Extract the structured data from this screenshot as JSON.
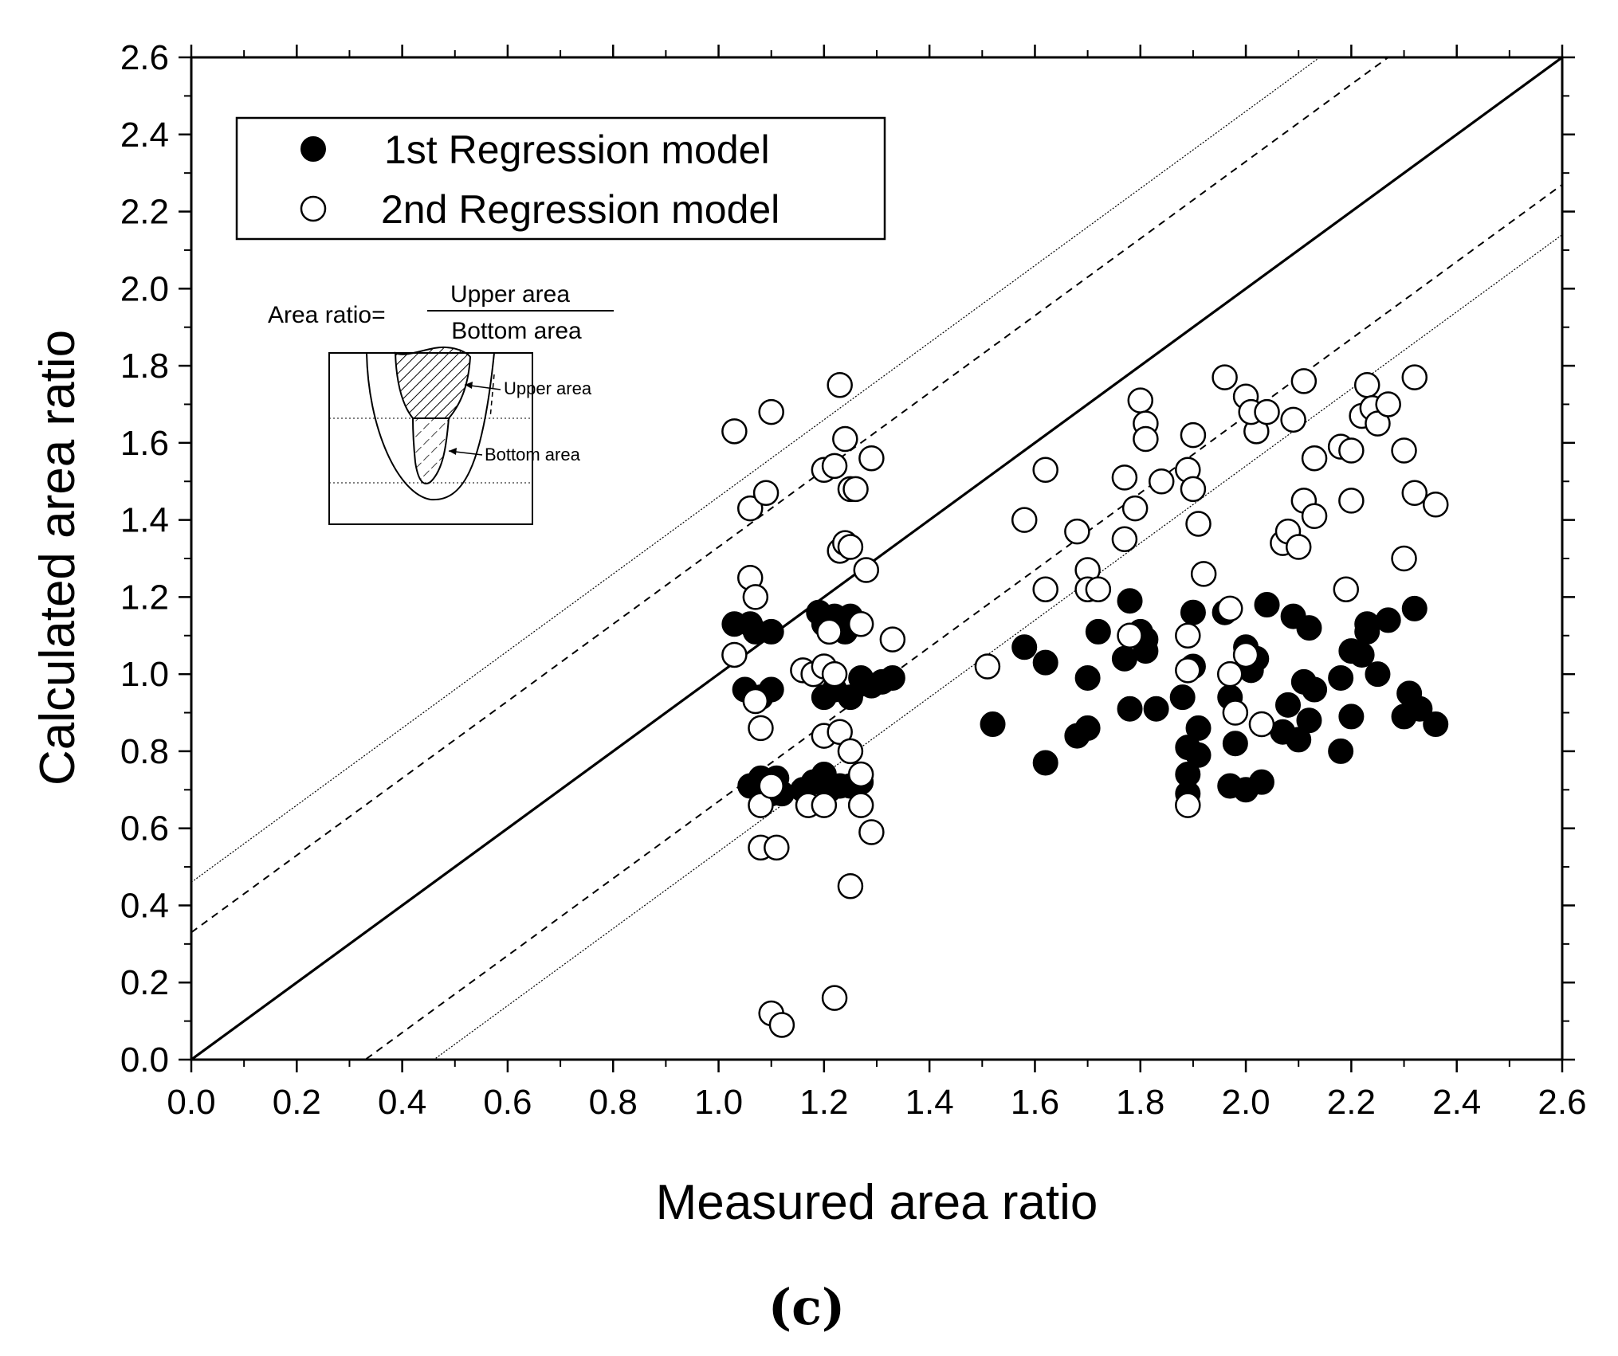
{
  "chart_data": {
    "type": "scatter",
    "title": "",
    "xlabel": "Measured area ratio",
    "ylabel": "Calculated area ratio",
    "xlim": [
      0.0,
      2.6
    ],
    "ylim": [
      0.0,
      2.6
    ],
    "x_ticks": [
      "0.0",
      "0.2",
      "0.4",
      "0.6",
      "0.8",
      "1.0",
      "1.2",
      "1.4",
      "1.6",
      "1.8",
      "2.0",
      "2.2",
      "2.4",
      "2.6"
    ],
    "y_ticks": [
      "0.0",
      "0.2",
      "0.4",
      "0.6",
      "0.8",
      "1.0",
      "1.2",
      "1.4",
      "1.6",
      "1.8",
      "2.0",
      "2.2",
      "2.4",
      "2.6"
    ],
    "grid": false,
    "legend_position": "top-left",
    "reference_lines": [
      {
        "name": "1:1 line",
        "style": "solid",
        "slope": 1,
        "intercept": 0
      },
      {
        "name": "upper dashed bound",
        "style": "dashed",
        "slope": 1,
        "intercept": 0.33
      },
      {
        "name": "lower dashed bound",
        "style": "dashed",
        "slope": 1,
        "intercept": -0.33
      },
      {
        "name": "upper dotted bound",
        "style": "dotted",
        "slope": 1,
        "intercept": 0.46
      },
      {
        "name": "lower dotted bound",
        "style": "dotted",
        "slope": 1,
        "intercept": -0.46
      }
    ],
    "series": [
      {
        "name": "1st Regression model",
        "marker": "filled-circle",
        "points": [
          [
            1.03,
            1.13
          ],
          [
            1.05,
            0.96
          ],
          [
            1.06,
            1.13
          ],
          [
            1.07,
            1.11
          ],
          [
            1.08,
            0.94
          ],
          [
            1.1,
            1.11
          ],
          [
            1.1,
            0.96
          ],
          [
            1.06,
            0.71
          ],
          [
            1.08,
            0.73
          ],
          [
            1.1,
            0.69
          ],
          [
            1.11,
            0.73
          ],
          [
            1.12,
            0.69
          ],
          [
            1.19,
            1.16
          ],
          [
            1.2,
            1.13
          ],
          [
            1.22,
            1.15
          ],
          [
            1.24,
            1.11
          ],
          [
            1.25,
            1.15
          ],
          [
            1.2,
            0.94
          ],
          [
            1.22,
            0.96
          ],
          [
            1.25,
            0.94
          ],
          [
            1.27,
            0.99
          ],
          [
            1.29,
            0.97
          ],
          [
            1.31,
            0.98
          ],
          [
            1.33,
            0.99
          ],
          [
            1.16,
            0.7
          ],
          [
            1.18,
            0.72
          ],
          [
            1.2,
            0.74
          ],
          [
            1.21,
            0.7
          ],
          [
            1.23,
            0.71
          ],
          [
            1.25,
            0.71
          ],
          [
            1.27,
            0.72
          ],
          [
            1.52,
            0.87
          ],
          [
            1.58,
            1.07
          ],
          [
            1.62,
            1.03
          ],
          [
            1.62,
            0.77
          ],
          [
            1.68,
            0.84
          ],
          [
            1.7,
            0.86
          ],
          [
            1.7,
            0.99
          ],
          [
            1.72,
            1.11
          ],
          [
            1.77,
            1.04
          ],
          [
            1.78,
            1.19
          ],
          [
            1.78,
            0.91
          ],
          [
            1.8,
            1.11
          ],
          [
            1.81,
            1.06
          ],
          [
            1.81,
            1.09
          ],
          [
            1.83,
            0.91
          ],
          [
            1.88,
            0.94
          ],
          [
            1.89,
            0.81
          ],
          [
            1.89,
            0.74
          ],
          [
            1.89,
            0.69
          ],
          [
            1.9,
            1.02
          ],
          [
            1.9,
            1.16
          ],
          [
            1.91,
            0.86
          ],
          [
            1.91,
            0.79
          ],
          [
            1.96,
            1.16
          ],
          [
            1.97,
            0.71
          ],
          [
            1.97,
            0.94
          ],
          [
            1.98,
            0.82
          ],
          [
            2.0,
            0.7
          ],
          [
            2.0,
            1.07
          ],
          [
            2.01,
            1.01
          ],
          [
            2.02,
            1.04
          ],
          [
            2.03,
            0.72
          ],
          [
            2.04,
            1.18
          ],
          [
            2.07,
            0.85
          ],
          [
            2.08,
            0.92
          ],
          [
            2.09,
            1.15
          ],
          [
            2.1,
            0.83
          ],
          [
            2.11,
            0.98
          ],
          [
            2.12,
            1.12
          ],
          [
            2.12,
            0.88
          ],
          [
            2.13,
            0.96
          ],
          [
            2.18,
            0.8
          ],
          [
            2.18,
            0.99
          ],
          [
            2.2,
            1.06
          ],
          [
            2.2,
            0.89
          ],
          [
            2.22,
            1.05
          ],
          [
            2.23,
            1.11
          ],
          [
            2.23,
            1.13
          ],
          [
            2.25,
            1.0
          ],
          [
            2.27,
            1.14
          ],
          [
            2.3,
            0.89
          ],
          [
            2.31,
            0.95
          ],
          [
            2.32,
            1.17
          ],
          [
            2.33,
            0.91
          ],
          [
            2.36,
            0.87
          ]
        ]
      },
      {
        "name": "2nd Regression model",
        "marker": "open-circle",
        "points": [
          [
            1.03,
            1.63
          ],
          [
            1.1,
            1.68
          ],
          [
            1.06,
            1.43
          ],
          [
            1.09,
            1.47
          ],
          [
            1.06,
            1.25
          ],
          [
            1.07,
            1.2
          ],
          [
            1.03,
            1.05
          ],
          [
            1.07,
            0.93
          ],
          [
            1.08,
            0.86
          ],
          [
            1.08,
            0.66
          ],
          [
            1.1,
            0.71
          ],
          [
            1.08,
            0.55
          ],
          [
            1.11,
            0.55
          ],
          [
            1.1,
            0.12
          ],
          [
            1.12,
            0.09
          ],
          [
            1.23,
            1.75
          ],
          [
            1.24,
            1.61
          ],
          [
            1.2,
            1.53
          ],
          [
            1.22,
            1.54
          ],
          [
            1.29,
            1.56
          ],
          [
            1.25,
            1.48
          ],
          [
            1.26,
            1.48
          ],
          [
            1.23,
            1.32
          ],
          [
            1.24,
            1.34
          ],
          [
            1.25,
            1.33
          ],
          [
            1.28,
            1.27
          ],
          [
            1.27,
            1.13
          ],
          [
            1.21,
            1.11
          ],
          [
            1.33,
            1.09
          ],
          [
            1.16,
            1.01
          ],
          [
            1.18,
            1.0
          ],
          [
            1.2,
            1.02
          ],
          [
            1.22,
            1.0
          ],
          [
            1.2,
            0.84
          ],
          [
            1.23,
            0.85
          ],
          [
            1.25,
            0.8
          ],
          [
            1.17,
            0.66
          ],
          [
            1.2,
            0.66
          ],
          [
            1.27,
            0.74
          ],
          [
            1.27,
            0.66
          ],
          [
            1.29,
            0.59
          ],
          [
            1.25,
            0.45
          ],
          [
            1.22,
            0.16
          ],
          [
            1.51,
            1.02
          ],
          [
            1.58,
            1.4
          ],
          [
            1.62,
            1.53
          ],
          [
            1.62,
            1.22
          ],
          [
            1.68,
            1.37
          ],
          [
            1.7,
            1.27
          ],
          [
            1.7,
            1.22
          ],
          [
            1.72,
            1.22
          ],
          [
            1.77,
            1.51
          ],
          [
            1.77,
            1.35
          ],
          [
            1.79,
            1.43
          ],
          [
            1.8,
            1.71
          ],
          [
            1.81,
            1.65
          ],
          [
            1.81,
            1.61
          ],
          [
            1.84,
            1.5
          ],
          [
            1.78,
            1.1
          ],
          [
            1.89,
            1.53
          ],
          [
            1.9,
            1.62
          ],
          [
            1.9,
            1.48
          ],
          [
            1.91,
            1.39
          ],
          [
            1.92,
            1.26
          ],
          [
            1.89,
            1.1
          ],
          [
            1.89,
            1.01
          ],
          [
            1.89,
            0.66
          ],
          [
            1.96,
            1.77
          ],
          [
            1.97,
            1.17
          ],
          [
            1.97,
            1.0
          ],
          [
            1.98,
            0.9
          ],
          [
            2.0,
            1.72
          ],
          [
            2.02,
            1.63
          ],
          [
            2.01,
            1.68
          ],
          [
            2.04,
            1.68
          ],
          [
            2.0,
            1.05
          ],
          [
            2.03,
            0.87
          ],
          [
            2.07,
            1.34
          ],
          [
            2.08,
            1.37
          ],
          [
            2.09,
            1.66
          ],
          [
            2.1,
            1.33
          ],
          [
            2.11,
            1.76
          ],
          [
            2.11,
            1.45
          ],
          [
            2.13,
            1.41
          ],
          [
            2.13,
            1.56
          ],
          [
            2.18,
            1.59
          ],
          [
            2.19,
            1.22
          ],
          [
            2.2,
            1.58
          ],
          [
            2.2,
            1.45
          ],
          [
            2.22,
            1.67
          ],
          [
            2.23,
            1.75
          ],
          [
            2.24,
            1.69
          ],
          [
            2.25,
            1.65
          ],
          [
            2.27,
            1.7
          ],
          [
            2.3,
            1.3
          ],
          [
            2.3,
            1.58
          ],
          [
            2.32,
            1.77
          ],
          [
            2.32,
            1.47
          ],
          [
            2.36,
            1.44
          ]
        ]
      }
    ],
    "inset": {
      "formula_label": "Area ratio=",
      "numerator": "Upper area",
      "denominator": "Bottom area",
      "upper_label": "Upper area",
      "bottom_label": "Bottom area"
    },
    "caption": "(c)"
  }
}
